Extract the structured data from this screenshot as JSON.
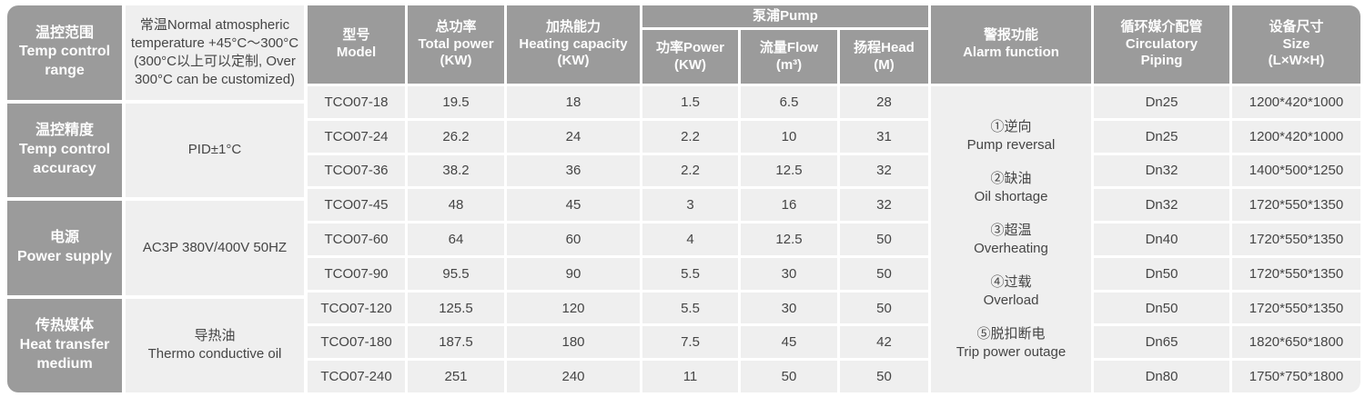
{
  "colors": {
    "header_bg": "#9b9b9b",
    "cell_bg": "#efefef",
    "header_text": "#fdfdfd",
    "cell_text": "#454545",
    "gap": "#ffffff"
  },
  "left_panel": {
    "rows": [
      {
        "label_zh": "温控范围",
        "label_en": "Temp control range",
        "value": "常温Normal atmospheric temperature +45°C～300°C (300°C以上可以定制, Over 300°C can be customized)"
      },
      {
        "label_zh": "温控精度",
        "label_en": "Temp control accuracy",
        "value": "PID±1°C"
      },
      {
        "label_zh": "电源",
        "label_en": "Power supply",
        "value": "AC3P 380V/400V 50HZ"
      },
      {
        "label_zh": "传热媒体",
        "label_en": "Heat transfer medium",
        "value": "导热油\nThermo conductive oil"
      }
    ]
  },
  "table": {
    "pump_group_label": "泵浦Pump",
    "headers": {
      "model": [
        "型号",
        "Model"
      ],
      "total_power": [
        "总功率",
        "Total power",
        "(KW)"
      ],
      "heating_capacity": [
        "加热能力",
        "Heating capacity",
        "(KW)"
      ],
      "pump_power": [
        "功率Power",
        "(KW)"
      ],
      "flow": [
        "流量Flow",
        "(m³)"
      ],
      "head": [
        "扬程Head",
        "(M)"
      ],
      "alarm": [
        "警报功能",
        "Alarm function"
      ],
      "piping": [
        "循环媒介配管",
        "Circulatory",
        "Piping"
      ],
      "size": [
        "设备尺寸",
        "Size",
        "(L×W×H)"
      ]
    },
    "rows": [
      {
        "model": "TCO07-18",
        "total_power": "19.5",
        "heating_capacity": "18",
        "pump_power": "1.5",
        "flow": "6.5",
        "head": "28",
        "piping": "Dn25",
        "size": "1200*420*1000"
      },
      {
        "model": "TCO07-24",
        "total_power": "26.2",
        "heating_capacity": "24",
        "pump_power": "2.2",
        "flow": "10",
        "head": "31",
        "piping": "Dn25",
        "size": "1200*420*1000"
      },
      {
        "model": "TCO07-36",
        "total_power": "38.2",
        "heating_capacity": "36",
        "pump_power": "2.2",
        "flow": "12.5",
        "head": "32",
        "piping": "Dn32",
        "size": "1400*500*1250"
      },
      {
        "model": "TCO07-45",
        "total_power": "48",
        "heating_capacity": "45",
        "pump_power": "3",
        "flow": "16",
        "head": "32",
        "piping": "Dn32",
        "size": "1720*550*1350"
      },
      {
        "model": "TCO07-60",
        "total_power": "64",
        "heating_capacity": "60",
        "pump_power": "4",
        "flow": "12.5",
        "head": "50",
        "piping": "Dn40",
        "size": "1720*550*1350"
      },
      {
        "model": "TCO07-90",
        "total_power": "95.5",
        "heating_capacity": "90",
        "pump_power": "5.5",
        "flow": "30",
        "head": "50",
        "piping": "Dn50",
        "size": "1720*550*1350"
      },
      {
        "model": "TCO07-120",
        "total_power": "125.5",
        "heating_capacity": "120",
        "pump_power": "5.5",
        "flow": "30",
        "head": "50",
        "piping": "Dn50",
        "size": "1720*550*1350"
      },
      {
        "model": "TCO07-180",
        "total_power": "187.5",
        "heating_capacity": "180",
        "pump_power": "7.5",
        "flow": "45",
        "head": "42",
        "piping": "Dn65",
        "size": "1820*650*1800"
      },
      {
        "model": "TCO07-240",
        "total_power": "251",
        "heating_capacity": "240",
        "pump_power": "11",
        "flow": "50",
        "head": "50",
        "piping": "Dn80",
        "size": "1750*750*1800"
      }
    ],
    "alarm_items": [
      {
        "zh": "①逆向",
        "en": "Pump reversal"
      },
      {
        "zh": "②缺油",
        "en": "Oil shortage"
      },
      {
        "zh": "③超温",
        "en": "Overheating"
      },
      {
        "zh": "④过载",
        "en": "Overload"
      },
      {
        "zh": "⑤脱扣断电",
        "en": "Trip power outage"
      }
    ]
  }
}
